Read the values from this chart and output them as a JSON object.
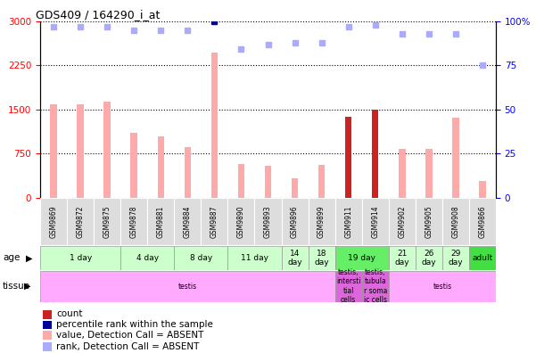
{
  "title": "GDS409 / 164290_i_at",
  "samples": [
    "GSM9869",
    "GSM9872",
    "GSM9875",
    "GSM9878",
    "GSM9881",
    "GSM9884",
    "GSM9887",
    "GSM9890",
    "GSM9893",
    "GSM9896",
    "GSM9899",
    "GSM9911",
    "GSM9914",
    "GSM9902",
    "GSM9905",
    "GSM9908",
    "GSM9866"
  ],
  "bar_values": [
    1580,
    1580,
    1630,
    1100,
    1040,
    860,
    2460,
    575,
    545,
    325,
    550,
    1380,
    1490,
    830,
    830,
    1360,
    280
  ],
  "bar_colors": [
    "#ffaaaa",
    "#ffaaaa",
    "#ffaaaa",
    "#ffaaaa",
    "#ffaaaa",
    "#ffaaaa",
    "#ffaaaa",
    "#ffaaaa",
    "#ffaaaa",
    "#ffaaaa",
    "#ffaaaa",
    "#cc2222",
    "#cc2222",
    "#ffaaaa",
    "#ffaaaa",
    "#ffaaaa",
    "#ffaaaa"
  ],
  "rank_values": [
    97,
    97,
    97,
    95,
    95,
    95,
    100,
    84,
    87,
    88,
    88,
    97,
    98,
    93,
    93,
    93,
    75
  ],
  "rank_colors": [
    "#aaaaff",
    "#aaaaff",
    "#aaaaff",
    "#aaaaff",
    "#aaaaff",
    "#aaaaff",
    "#000099",
    "#aaaaff",
    "#aaaaff",
    "#aaaaff",
    "#aaaaff",
    "#aaaaff",
    "#aaaaff",
    "#aaaaff",
    "#aaaaff",
    "#aaaaff",
    "#aaaaff"
  ],
  "ylim_left": [
    0,
    3000
  ],
  "ylim_right": [
    0,
    100
  ],
  "yticks_left": [
    0,
    750,
    1500,
    2250,
    3000
  ],
  "yticks_right": [
    0,
    25,
    50,
    75,
    100
  ],
  "age_groups": [
    {
      "label": "1 day",
      "start": 0,
      "end": 3,
      "color": "#ccffcc"
    },
    {
      "label": "4 day",
      "start": 3,
      "end": 5,
      "color": "#ccffcc"
    },
    {
      "label": "8 day",
      "start": 5,
      "end": 7,
      "color": "#ccffcc"
    },
    {
      "label": "11 day",
      "start": 7,
      "end": 9,
      "color": "#ccffcc"
    },
    {
      "label": "14\nday",
      "start": 9,
      "end": 10,
      "color": "#ccffcc"
    },
    {
      "label": "18\nday",
      "start": 10,
      "end": 11,
      "color": "#ccffcc"
    },
    {
      "label": "19 day",
      "start": 11,
      "end": 13,
      "color": "#66ee66"
    },
    {
      "label": "21\nday",
      "start": 13,
      "end": 14,
      "color": "#ccffcc"
    },
    {
      "label": "26\nday",
      "start": 14,
      "end": 15,
      "color": "#ccffcc"
    },
    {
      "label": "29\nday",
      "start": 15,
      "end": 16,
      "color": "#ccffcc"
    },
    {
      "label": "adult",
      "start": 16,
      "end": 17,
      "color": "#44dd44"
    }
  ],
  "tissue_groups": [
    {
      "label": "testis",
      "start": 0,
      "end": 11,
      "color": "#ffaaff"
    },
    {
      "label": "testis,\nintersti\ntial\ncells",
      "start": 11,
      "end": 12,
      "color": "#dd66dd"
    },
    {
      "label": "testis,\ntubula\nr soma\nic cells",
      "start": 12,
      "end": 13,
      "color": "#dd66dd"
    },
    {
      "label": "testis",
      "start": 13,
      "end": 17,
      "color": "#ffaaff"
    }
  ],
  "legend_items": [
    {
      "color": "#cc2222",
      "label": "count"
    },
    {
      "color": "#000099",
      "label": "percentile rank within the sample"
    },
    {
      "color": "#ffaaaa",
      "label": "value, Detection Call = ABSENT"
    },
    {
      "color": "#aaaaff",
      "label": "rank, Detection Call = ABSENT"
    }
  ],
  "background_color": "#ffffff"
}
